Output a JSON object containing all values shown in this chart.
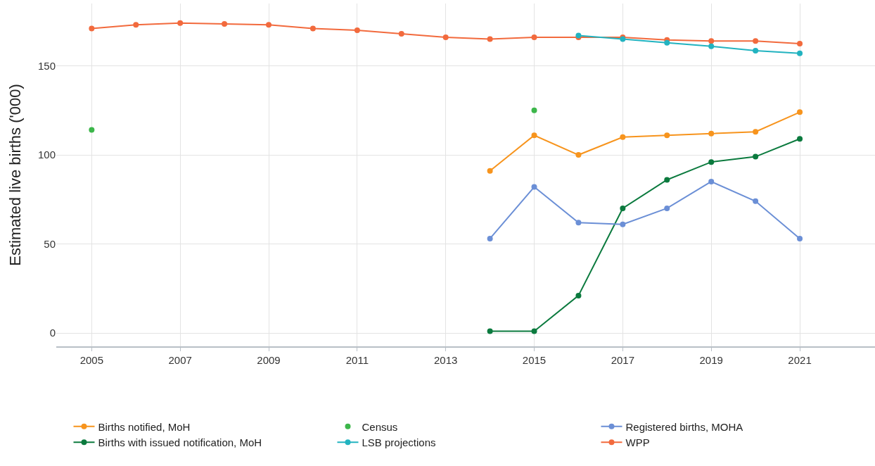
{
  "chart_data": {
    "type": "line",
    "ylabel": "Estimated live births ('000)",
    "marker": "circle",
    "line_style": "solid",
    "grid": true,
    "legend": "bottom",
    "xlim": [
      2004.2,
      2022.7
    ],
    "xticks": [
      2005,
      2007,
      2009,
      2011,
      2013,
      2015,
      2017,
      2019,
      2021
    ],
    "ylim": [
      -7.5,
      185
    ],
    "yticks": [
      0,
      50,
      100,
      150
    ],
    "series": [
      {
        "name": "Births notified, MoH",
        "color": "#f7941d",
        "x": [
          2014,
          2015,
          2016,
          2017,
          2018,
          2019,
          2020,
          2021
        ],
        "values": [
          91,
          111,
          100,
          110,
          111,
          112,
          113,
          124
        ]
      },
      {
        "name": "Census",
        "type": "scatter",
        "color": "#3cb64a",
        "x": [
          2005,
          2015
        ],
        "values": [
          114,
          125
        ]
      },
      {
        "name": "Registered births, MOHA",
        "color": "#6b8fd6",
        "x": [
          2014,
          2015,
          2016,
          2017,
          2018,
          2019,
          2020,
          2021
        ],
        "values": [
          53,
          82,
          62,
          61,
          70,
          85,
          74,
          53
        ]
      },
      {
        "name": "Births with issued notification, MoH",
        "color": "#0b7a3e",
        "x": [
          2014,
          2015,
          2016,
          2017,
          2018,
          2019,
          2020,
          2021
        ],
        "values": [
          1,
          1,
          21,
          70,
          86,
          96,
          99,
          109
        ]
      },
      {
        "name": "LSB projections",
        "color": "#22b3c0",
        "x": [
          2016,
          2017,
          2018,
          2019,
          2020,
          2021
        ],
        "values": [
          167,
          165,
          163,
          161,
          158.5,
          157
        ]
      },
      {
        "name": "WPP",
        "color": "#f26a3d",
        "x": [
          2005,
          2006,
          2007,
          2008,
          2009,
          2010,
          2011,
          2012,
          2013,
          2014,
          2015,
          2016,
          2017,
          2018,
          2019,
          2020,
          2021
        ],
        "values": [
          171,
          173,
          174,
          173.5,
          173,
          171,
          170,
          168,
          166,
          165,
          166,
          166,
          166,
          164.5,
          164,
          164,
          162.5
        ]
      }
    ]
  }
}
